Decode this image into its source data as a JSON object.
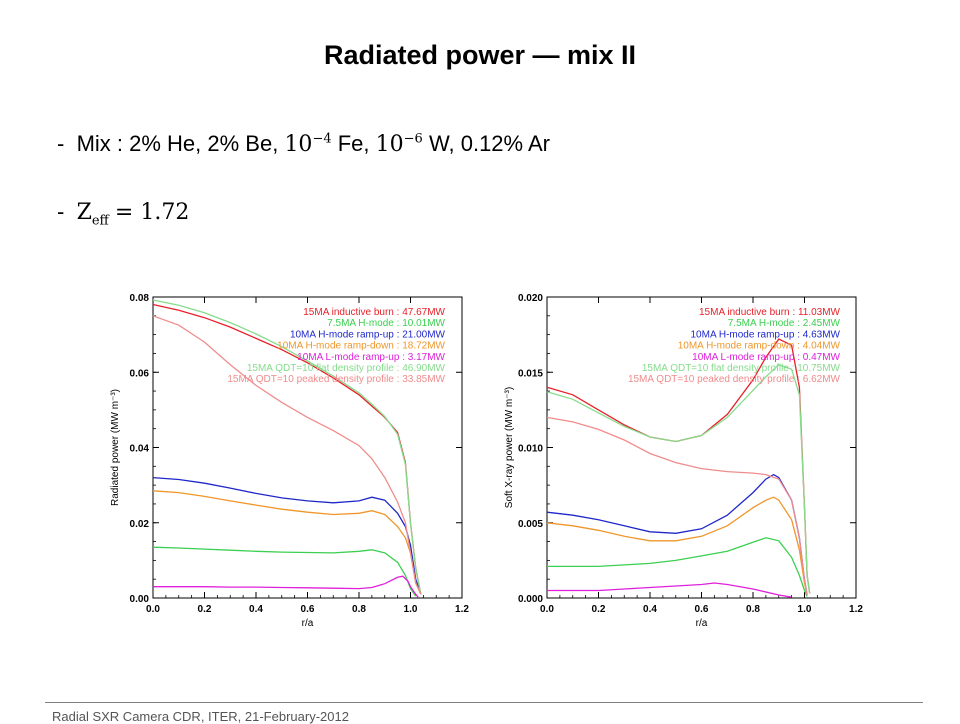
{
  "slide": {
    "title": "Radiated power — mix II",
    "bullet_mix": {
      "dash": "-",
      "lead": "Mix : 2% He, 2% Be,",
      "base1": "10",
      "exp1": "−4",
      "t1": "Fe,",
      "base2": "10",
      "exp2": "−6",
      "t2": "W, 0.12% Ar"
    },
    "bullet_zeff": {
      "dash": "-",
      "z": "Z",
      "sub": "eff",
      "value": "= 1.72"
    },
    "footer": "Radial SXR Camera CDR, ITER, 21-February-2012"
  },
  "chart_data": [
    {
      "type": "line",
      "xlabel": "r/a",
      "ylabel": "Radiated power (MW m⁻³)",
      "xlim": [
        0,
        1.2
      ],
      "ylim": [
        0,
        0.08
      ],
      "xticks": [
        "0.0",
        "0.2",
        "0.4",
        "0.6",
        "0.8",
        "1.0",
        "1.2"
      ],
      "yticks": [
        "0.00",
        "0.02",
        "0.04",
        "0.06",
        "0.08"
      ],
      "legend_position": "top-right",
      "series": [
        {
          "name": "15MA inductive burn : 47.67MW",
          "color": "#e8202a",
          "points": [
            [
              0,
              0.078
            ],
            [
              0.1,
              0.0765
            ],
            [
              0.2,
              0.0745
            ],
            [
              0.3,
              0.072
            ],
            [
              0.4,
              0.069
            ],
            [
              0.5,
              0.066
            ],
            [
              0.6,
              0.0625
            ],
            [
              0.7,
              0.0585
            ],
            [
              0.8,
              0.054
            ],
            [
              0.85,
              0.051
            ],
            [
              0.9,
              0.048
            ],
            [
              0.95,
              0.044
            ],
            [
              0.98,
              0.036
            ],
            [
              1.0,
              0.02
            ],
            [
              1.02,
              0.008
            ],
            [
              1.04,
              0.001
            ]
          ]
        },
        {
          "name": "7.5MA H-mode : 10.01MW",
          "color": "#3ccf50",
          "points": [
            [
              0,
              0.0135
            ],
            [
              0.1,
              0.0133
            ],
            [
              0.2,
              0.013
            ],
            [
              0.3,
              0.0127
            ],
            [
              0.4,
              0.0124
            ],
            [
              0.5,
              0.0122
            ],
            [
              0.6,
              0.0121
            ],
            [
              0.7,
              0.012
            ],
            [
              0.8,
              0.0124
            ],
            [
              0.85,
              0.0128
            ],
            [
              0.9,
              0.012
            ],
            [
              0.95,
              0.0095
            ],
            [
              0.98,
              0.006
            ],
            [
              1.0,
              0.0025
            ],
            [
              1.02,
              0.0005
            ]
          ]
        },
        {
          "name": "10MA H-mode ramp-up : 21.00MW",
          "color": "#1f28c8",
          "points": [
            [
              0,
              0.032
            ],
            [
              0.1,
              0.0315
            ],
            [
              0.2,
              0.0305
            ],
            [
              0.3,
              0.0292
            ],
            [
              0.4,
              0.0278
            ],
            [
              0.5,
              0.0266
            ],
            [
              0.6,
              0.0258
            ],
            [
              0.7,
              0.0253
            ],
            [
              0.8,
              0.0258
            ],
            [
              0.85,
              0.0268
            ],
            [
              0.9,
              0.026
            ],
            [
              0.95,
              0.0225
            ],
            [
              0.98,
              0.019
            ],
            [
              1.0,
              0.014
            ],
            [
              1.02,
              0.005
            ],
            [
              1.04,
              0.001
            ]
          ]
        },
        {
          "name": "10MA H-mode ramp-down : 18.72MW",
          "color": "#f0962a",
          "points": [
            [
              0,
              0.0285
            ],
            [
              0.1,
              0.028
            ],
            [
              0.2,
              0.027
            ],
            [
              0.3,
              0.0258
            ],
            [
              0.4,
              0.0247
            ],
            [
              0.5,
              0.0236
            ],
            [
              0.6,
              0.0228
            ],
            [
              0.7,
              0.0222
            ],
            [
              0.8,
              0.0225
            ],
            [
              0.85,
              0.0232
            ],
            [
              0.9,
              0.0222
            ],
            [
              0.95,
              0.019
            ],
            [
              0.98,
              0.016
            ],
            [
              1.0,
              0.012
            ],
            [
              1.02,
              0.004
            ],
            [
              1.04,
              0.001
            ]
          ]
        },
        {
          "name": "10MA L-mode ramp-up : 3.17MW",
          "color": "#e020dc",
          "points": [
            [
              0,
              0.003
            ],
            [
              0.1,
              0.003
            ],
            [
              0.2,
              0.003
            ],
            [
              0.3,
              0.0029
            ],
            [
              0.4,
              0.0029
            ],
            [
              0.5,
              0.0028
            ],
            [
              0.6,
              0.0027
            ],
            [
              0.7,
              0.0026
            ],
            [
              0.8,
              0.0025
            ],
            [
              0.85,
              0.0028
            ],
            [
              0.9,
              0.0038
            ],
            [
              0.95,
              0.0055
            ],
            [
              0.97,
              0.0058
            ],
            [
              0.99,
              0.0045
            ],
            [
              1.0,
              0.003
            ],
            [
              1.02,
              0.001
            ],
            [
              1.03,
              0.0002
            ]
          ]
        },
        {
          "name": "15MA QDT=10 flat density profile : 46.90MW",
          "color": "#86dc8c",
          "points": [
            [
              0,
              0.0792
            ],
            [
              0.1,
              0.0778
            ],
            [
              0.2,
              0.0758
            ],
            [
              0.3,
              0.0732
            ],
            [
              0.4,
              0.0702
            ],
            [
              0.5,
              0.0668
            ],
            [
              0.6,
              0.063
            ],
            [
              0.7,
              0.059
            ],
            [
              0.8,
              0.0545
            ],
            [
              0.85,
              0.0515
            ],
            [
              0.9,
              0.0482
            ],
            [
              0.95,
              0.0435
            ],
            [
              0.98,
              0.0355
            ],
            [
              1.0,
              0.02
            ],
            [
              1.02,
              0.008
            ],
            [
              1.04,
              0.001
            ]
          ]
        },
        {
          "name": "15MA QDT=10 peaked density profile : 33.85MW",
          "color": "#f08c8c",
          "points": [
            [
              0,
              0.075
            ],
            [
              0.1,
              0.0725
            ],
            [
              0.2,
              0.068
            ],
            [
              0.3,
              0.062
            ],
            [
              0.4,
              0.0565
            ],
            [
              0.5,
              0.052
            ],
            [
              0.6,
              0.048
            ],
            [
              0.7,
              0.0445
            ],
            [
              0.8,
              0.0405
            ],
            [
              0.85,
              0.037
            ],
            [
              0.9,
              0.032
            ],
            [
              0.95,
              0.0255
            ],
            [
              0.98,
              0.02
            ],
            [
              1.0,
              0.012
            ],
            [
              1.02,
              0.004
            ],
            [
              1.04,
              0.001
            ]
          ]
        }
      ]
    },
    {
      "type": "line",
      "xlabel": "r/a",
      "ylabel": "Soft X-ray power (MW m⁻³)",
      "xlim": [
        0,
        1.2
      ],
      "ylim": [
        0,
        0.02
      ],
      "xticks": [
        "0.0",
        "0.2",
        "0.4",
        "0.6",
        "0.8",
        "1.0",
        "1.2"
      ],
      "yticks": [
        "0.000",
        "0.005",
        "0.010",
        "0.015",
        "0.020"
      ],
      "legend_position": "top-right",
      "series": [
        {
          "name": "15MA inductive burn : 11.03MW",
          "color": "#e8202a",
          "points": [
            [
              0,
              0.014
            ],
            [
              0.1,
              0.0135
            ],
            [
              0.2,
              0.0125
            ],
            [
              0.3,
              0.0115
            ],
            [
              0.4,
              0.0107
            ],
            [
              0.5,
              0.0104
            ],
            [
              0.6,
              0.0108
            ],
            [
              0.7,
              0.0122
            ],
            [
              0.8,
              0.0145
            ],
            [
              0.85,
              0.016
            ],
            [
              0.9,
              0.0172
            ],
            [
              0.95,
              0.0168
            ],
            [
              0.98,
              0.014
            ],
            [
              1.0,
              0.006
            ],
            [
              1.01,
              0.0015
            ],
            [
              1.02,
              0.0003
            ]
          ]
        },
        {
          "name": "7.5MA H-mode : 2.45MW",
          "color": "#3ccf50",
          "points": [
            [
              0,
              0.0021
            ],
            [
              0.1,
              0.0021
            ],
            [
              0.2,
              0.0021
            ],
            [
              0.3,
              0.0022
            ],
            [
              0.4,
              0.0023
            ],
            [
              0.5,
              0.0025
            ],
            [
              0.6,
              0.0028
            ],
            [
              0.7,
              0.0031
            ],
            [
              0.8,
              0.0037
            ],
            [
              0.85,
              0.004
            ],
            [
              0.9,
              0.0038
            ],
            [
              0.95,
              0.0027
            ],
            [
              0.98,
              0.0015
            ],
            [
              1.0,
              0.0005
            ],
            [
              1.01,
              0.0001
            ]
          ]
        },
        {
          "name": "10MA H-mode ramp-up : 4.63MW",
          "color": "#1f28c8",
          "points": [
            [
              0,
              0.0057
            ],
            [
              0.1,
              0.0055
            ],
            [
              0.2,
              0.0052
            ],
            [
              0.3,
              0.0048
            ],
            [
              0.4,
              0.0044
            ],
            [
              0.5,
              0.0043
            ],
            [
              0.6,
              0.0046
            ],
            [
              0.7,
              0.0055
            ],
            [
              0.8,
              0.007
            ],
            [
              0.85,
              0.0079
            ],
            [
              0.88,
              0.0082
            ],
            [
              0.9,
              0.008
            ],
            [
              0.95,
              0.0065
            ],
            [
              0.98,
              0.004
            ],
            [
              1.0,
              0.0012
            ],
            [
              1.01,
              0.0002
            ]
          ]
        },
        {
          "name": "10MA H-mode ramp-down : 4.04MW",
          "color": "#f0962a",
          "points": [
            [
              0,
              0.005
            ],
            [
              0.1,
              0.0048
            ],
            [
              0.2,
              0.0045
            ],
            [
              0.3,
              0.0041
            ],
            [
              0.4,
              0.0038
            ],
            [
              0.5,
              0.0038
            ],
            [
              0.6,
              0.0041
            ],
            [
              0.7,
              0.0048
            ],
            [
              0.8,
              0.006
            ],
            [
              0.85,
              0.0065
            ],
            [
              0.88,
              0.0067
            ],
            [
              0.9,
              0.0065
            ],
            [
              0.95,
              0.0052
            ],
            [
              0.98,
              0.0032
            ],
            [
              1.0,
              0.001
            ],
            [
              1.01,
              0.0002
            ]
          ]
        },
        {
          "name": "10MA L-mode ramp-up : 0.47MW",
          "color": "#e020dc",
          "points": [
            [
              0,
              0.0005
            ],
            [
              0.1,
              0.0005
            ],
            [
              0.2,
              0.0005
            ],
            [
              0.3,
              0.0006
            ],
            [
              0.4,
              0.0007
            ],
            [
              0.5,
              0.0008
            ],
            [
              0.6,
              0.0009
            ],
            [
              0.65,
              0.001
            ],
            [
              0.7,
              0.0009
            ],
            [
              0.8,
              0.0006
            ],
            [
              0.9,
              0.0002
            ],
            [
              0.95,
              5e-05
            ]
          ]
        },
        {
          "name": "15MA QDT=10 flat density profile : 10.75MW",
          "color": "#86dc8c",
          "points": [
            [
              0,
              0.0137
            ],
            [
              0.1,
              0.0132
            ],
            [
              0.2,
              0.0123
            ],
            [
              0.3,
              0.0114
            ],
            [
              0.4,
              0.0107
            ],
            [
              0.5,
              0.0104
            ],
            [
              0.6,
              0.0108
            ],
            [
              0.7,
              0.012
            ],
            [
              0.8,
              0.0138
            ],
            [
              0.85,
              0.0147
            ],
            [
              0.9,
              0.0155
            ],
            [
              0.95,
              0.0152
            ],
            [
              0.98,
              0.0135
            ],
            [
              1.0,
              0.006
            ],
            [
              1.01,
              0.0015
            ],
            [
              1.02,
              0.0003
            ]
          ]
        },
        {
          "name": "15MA QDT=10 peaked density profile : 6.62MW",
          "color": "#f08c8c",
          "points": [
            [
              0,
              0.012
            ],
            [
              0.1,
              0.0117
            ],
            [
              0.2,
              0.0112
            ],
            [
              0.3,
              0.0105
            ],
            [
              0.4,
              0.0096
            ],
            [
              0.5,
              0.009
            ],
            [
              0.6,
              0.0086
            ],
            [
              0.7,
              0.0084
            ],
            [
              0.8,
              0.0083
            ],
            [
              0.85,
              0.0082
            ],
            [
              0.9,
              0.0079
            ],
            [
              0.95,
              0.0065
            ],
            [
              0.98,
              0.004
            ],
            [
              1.0,
              0.0012
            ],
            [
              1.01,
              0.0002
            ]
          ]
        }
      ]
    }
  ]
}
